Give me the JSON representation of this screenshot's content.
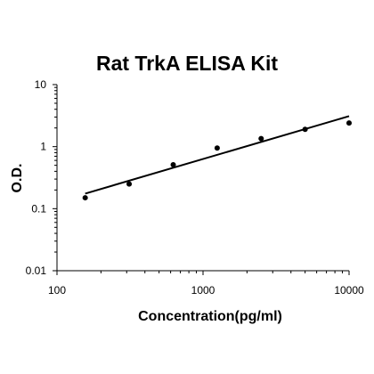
{
  "chart_data": {
    "type": "scatter",
    "title": "Rat TrkA ELISA Kit",
    "xlabel": "Concentration(pg/ml)",
    "ylabel": "O.D.",
    "x_scale": "log",
    "y_scale": "log",
    "xlim": [
      100,
      10000
    ],
    "ylim": [
      0.01,
      10
    ],
    "x_ticks": [
      "100",
      "1000",
      "10000"
    ],
    "y_ticks": [
      "10",
      "1",
      "0.1",
      "0.01"
    ],
    "grid": false,
    "legend": "none",
    "series": [
      {
        "x": [
          156,
          312,
          625,
          1250,
          2500,
          5000,
          10000
        ],
        "y": [
          0.15,
          0.25,
          0.51,
          0.95,
          1.35,
          1.9,
          2.4
        ],
        "color": "#000000",
        "marker": "circle"
      }
    ],
    "fit_line": {
      "type": "power",
      "x": [
        156,
        10000
      ],
      "y": [
        0.175,
        3.1
      ],
      "color": "#000000"
    }
  }
}
